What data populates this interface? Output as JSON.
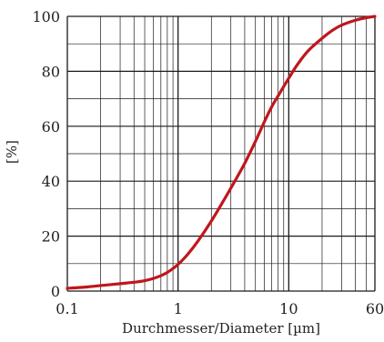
{
  "chart_data": {
    "type": "line",
    "title": "",
    "xlabel": "Durchmesser/Diameter  [µm]",
    "ylabel": "[%]",
    "x_scale": "log",
    "xlim": [
      0.1,
      60
    ],
    "ylim": [
      0,
      100
    ],
    "x_ticks": [
      {
        "value": 0.1,
        "label": "0.1"
      },
      {
        "value": 1,
        "label": "1"
      },
      {
        "value": 10,
        "label": "10"
      },
      {
        "value": 60,
        "label": "60"
      }
    ],
    "y_ticks": [
      {
        "value": 0,
        "label": "0"
      },
      {
        "value": 20,
        "label": "20"
      },
      {
        "value": 40,
        "label": "40"
      },
      {
        "value": 60,
        "label": "60"
      },
      {
        "value": 80,
        "label": "80"
      },
      {
        "value": 100,
        "label": "100"
      }
    ],
    "x_gridlines": [
      0.1,
      0.2,
      0.3,
      0.4,
      0.5,
      0.6,
      0.7,
      0.8,
      0.9,
      1,
      2,
      3,
      4,
      5,
      6,
      7,
      8,
      9,
      10,
      20,
      30,
      40,
      50,
      60
    ],
    "y_gridlines": [
      0,
      10,
      20,
      30,
      40,
      50,
      60,
      70,
      80,
      90,
      100
    ],
    "grid": true,
    "legend": "none",
    "series_color": "#c0161d",
    "series": [
      {
        "x": [
          0.1,
          0.15,
          0.2,
          0.3,
          0.4,
          0.5,
          0.6,
          0.7,
          0.8,
          0.9,
          1,
          1.2,
          1.5,
          2,
          2.5,
          3,
          4,
          5,
          6,
          7,
          8,
          10,
          12,
          15,
          20,
          25,
          30,
          40,
          50,
          60
        ],
        "y": [
          1.0,
          1.5,
          2.0,
          2.7,
          3.2,
          3.8,
          4.6,
          5.6,
          6.8,
          8.2,
          9.7,
          13.0,
          18.0,
          25.5,
          32.0,
          37.5,
          46.5,
          54.5,
          61.5,
          67.0,
          71.0,
          77.5,
          82.5,
          87.5,
          92.0,
          95.0,
          96.8,
          98.6,
          99.5,
          100.0
        ]
      }
    ]
  }
}
